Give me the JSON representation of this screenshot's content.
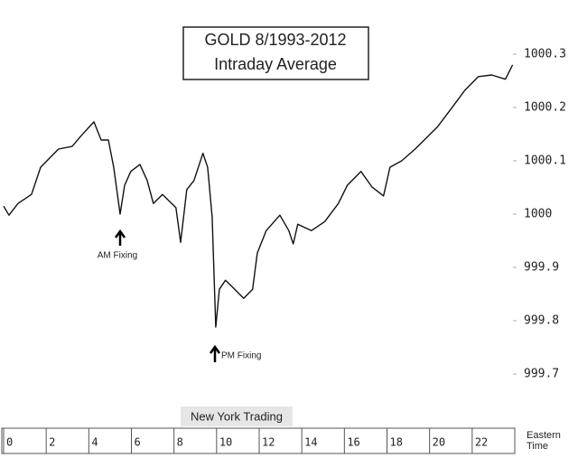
{
  "chart_data": {
    "type": "line",
    "title": "GOLD 8/1993-2012",
    "subtitle": "Intraday Average",
    "x_label": "Eastern Time",
    "annotations": [
      "AM Fixing",
      "PM Fixing",
      "New York Trading"
    ],
    "color": "#111111",
    "x": [
      0,
      0.25,
      0.68,
      1.31,
      1.74,
      2.16,
      2.58,
      3.22,
      3.64,
      4.24,
      4.58,
      4.92,
      5.17,
      5.47,
      5.68,
      5.97,
      6.4,
      6.74,
      7.03,
      7.46,
      8.09,
      8.31,
      8.6,
      8.94,
      9.36,
      9.58,
      9.79,
      9.96,
      10.13,
      10.42,
      10.85,
      11.27,
      11.69,
      11.91,
      12.33,
      12.97,
      13.39,
      13.6,
      13.81,
      14.45,
      15.08,
      15.72,
      16.14,
      16.78,
      17.29,
      17.84,
      18.14,
      18.69,
      19.32,
      19.75,
      20.38,
      21.02,
      21.65,
      22.29,
      22.92,
      23.56,
      23.9
    ],
    "values": [
      1000.015,
      999.998,
      1000.02,
      1000.037,
      1000.088,
      1000.105,
      1000.122,
      1000.127,
      1000.147,
      1000.173,
      1000.139,
      1000.139,
      1000.088,
      1000.0,
      1000.054,
      1000.08,
      1000.093,
      1000.063,
      1000.02,
      1000.037,
      1000.012,
      999.947,
      1000.046,
      1000.063,
      1000.114,
      1000.088,
      999.995,
      999.788,
      999.859,
      999.876,
      999.859,
      999.842,
      999.859,
      999.927,
      999.969,
      999.998,
      999.969,
      999.944,
      999.981,
      999.969,
      999.986,
      1000.02,
      1000.054,
      1000.08,
      1000.051,
      1000.034,
      1000.088,
      1000.1,
      1000.122,
      1000.139,
      1000.164,
      1000.198,
      1000.232,
      1000.258,
      1000.261,
      1000.253,
      1000.28
    ],
    "xlim": [
      0,
      24
    ],
    "xticks": [
      0,
      2,
      4,
      6,
      8,
      10,
      12,
      14,
      16,
      18,
      20,
      22
    ],
    "ylim": [
      999.6,
      1000.4
    ],
    "yticks": [
      999.7,
      999.8,
      999.9,
      1000,
      1000.1,
      1000.2,
      1000.3
    ]
  }
}
